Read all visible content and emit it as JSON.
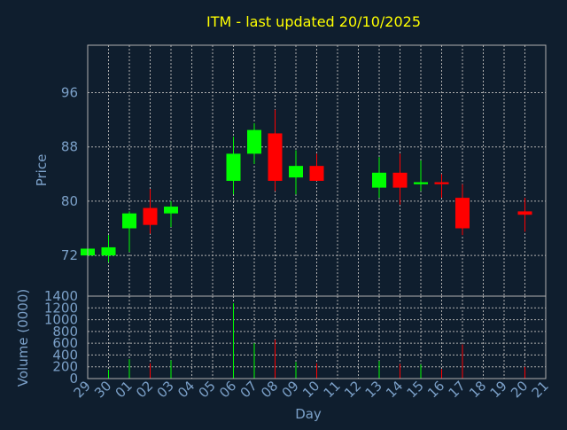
{
  "title": "ITM - last updated 20/10/2025",
  "colors": {
    "background": "#0f1e2e",
    "up": "#00ff00",
    "down": "#ff0000",
    "grid": "#b0b0b0",
    "text": "#7ba0c8",
    "title": "#ffff00"
  },
  "chart_data": {
    "type": "candlestick",
    "title": "ITM - last updated 20/10/2025",
    "xlabel": "Day",
    "ylabel_price": "Price",
    "ylabel_volume": "Volume (0000)",
    "categories": [
      "29",
      "30",
      "01",
      "02",
      "03",
      "04",
      "05",
      "06",
      "07",
      "08",
      "09",
      "10",
      "11",
      "12",
      "13",
      "14",
      "15",
      "16",
      "17",
      "18",
      "19",
      "20",
      "21"
    ],
    "price_ylim": [
      66,
      103
    ],
    "price_ticks": [
      72,
      80,
      88,
      96
    ],
    "volume_ylim": [
      0,
      1400
    ],
    "volume_ticks": [
      0,
      200,
      400,
      600,
      800,
      1000,
      1200,
      1400
    ],
    "grid": true,
    "candles": [
      {
        "day": "29",
        "open": 72.0,
        "close": 73.0,
        "high": 73.0,
        "low": 72.0,
        "volume": 0
      },
      {
        "day": "30",
        "open": 72.0,
        "close": 73.2,
        "high": 75.0,
        "low": 71.0,
        "volume": 150
      },
      {
        "day": "01",
        "open": 76.0,
        "close": 78.2,
        "high": 78.5,
        "low": 72.5,
        "volume": 330
      },
      {
        "day": "02",
        "open": 79.0,
        "close": 76.5,
        "high": 81.8,
        "low": 75.2,
        "volume": 260
      },
      {
        "day": "03",
        "open": 78.2,
        "close": 79.2,
        "high": 80.0,
        "low": 76.2,
        "volume": 310
      },
      {
        "day": "06",
        "open": 83.0,
        "close": 87.0,
        "high": 89.5,
        "low": 81.0,
        "volume": 1280
      },
      {
        "day": "07",
        "open": 87.0,
        "close": 90.5,
        "high": 91.5,
        "low": 85.5,
        "volume": 600
      },
      {
        "day": "08",
        "open": 90.0,
        "close": 83.0,
        "high": 93.5,
        "low": 81.5,
        "volume": 660
      },
      {
        "day": "09",
        "open": 83.5,
        "close": 85.2,
        "high": 87.5,
        "low": 81.0,
        "volume": 280
      },
      {
        "day": "10",
        "open": 85.2,
        "close": 83.0,
        "high": 87.0,
        "low": 83.0,
        "volume": 260
      },
      {
        "day": "13",
        "open": 82.0,
        "close": 84.2,
        "high": 86.5,
        "low": 80.5,
        "volume": 300
      },
      {
        "day": "14",
        "open": 84.2,
        "close": 82.0,
        "high": 87.0,
        "low": 79.5,
        "volume": 250
      },
      {
        "day": "15",
        "open": 82.5,
        "close": 82.8,
        "high": 86.0,
        "low": 81.5,
        "volume": 240
      },
      {
        "day": "16",
        "open": 82.8,
        "close": 82.5,
        "high": 84.0,
        "low": 80.5,
        "volume": 160
      },
      {
        "day": "17",
        "open": 80.5,
        "close": 76.0,
        "high": 82.5,
        "low": 75.0,
        "volume": 580
      },
      {
        "day": "20",
        "open": 78.5,
        "close": 78.0,
        "high": 80.5,
        "low": 75.5,
        "volume": 200
      }
    ]
  }
}
